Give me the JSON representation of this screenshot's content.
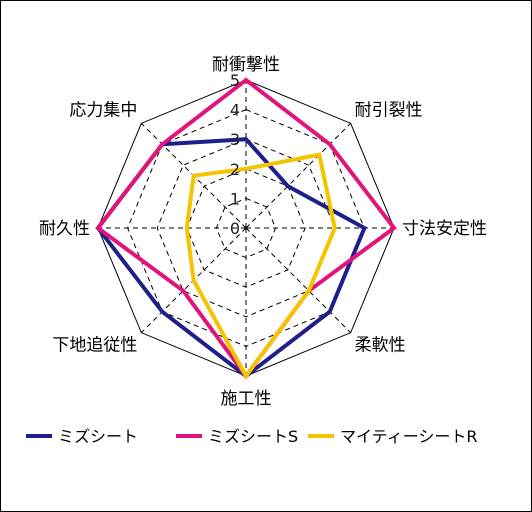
{
  "chart_data": {
    "type": "radar",
    "title": "",
    "axes": [
      "耐衝撃性",
      "耐引裂性",
      "寸法安定性",
      "柔軟性",
      "施工性",
      "下地追従性",
      "耐久性",
      "応力集中"
    ],
    "rlim": [
      0,
      5
    ],
    "ticks": [
      "0",
      "1",
      "2",
      "3",
      "4",
      "5"
    ],
    "grid": true,
    "legend_position": "bottom",
    "series": [
      {
        "name": "ミズシート",
        "color": "#1f1f8a",
        "values": [
          3,
          2,
          4,
          4,
          5,
          4,
          5,
          4
        ]
      },
      {
        "name": "ミズシートS",
        "color": "#e0147a",
        "values": [
          5,
          4,
          5,
          3,
          5,
          3,
          5,
          4
        ]
      },
      {
        "name": "マイティーシートR",
        "color": "#f5c400",
        "values": [
          2,
          3.5,
          3,
          3,
          5,
          2.5,
          2,
          2.5
        ]
      }
    ]
  }
}
